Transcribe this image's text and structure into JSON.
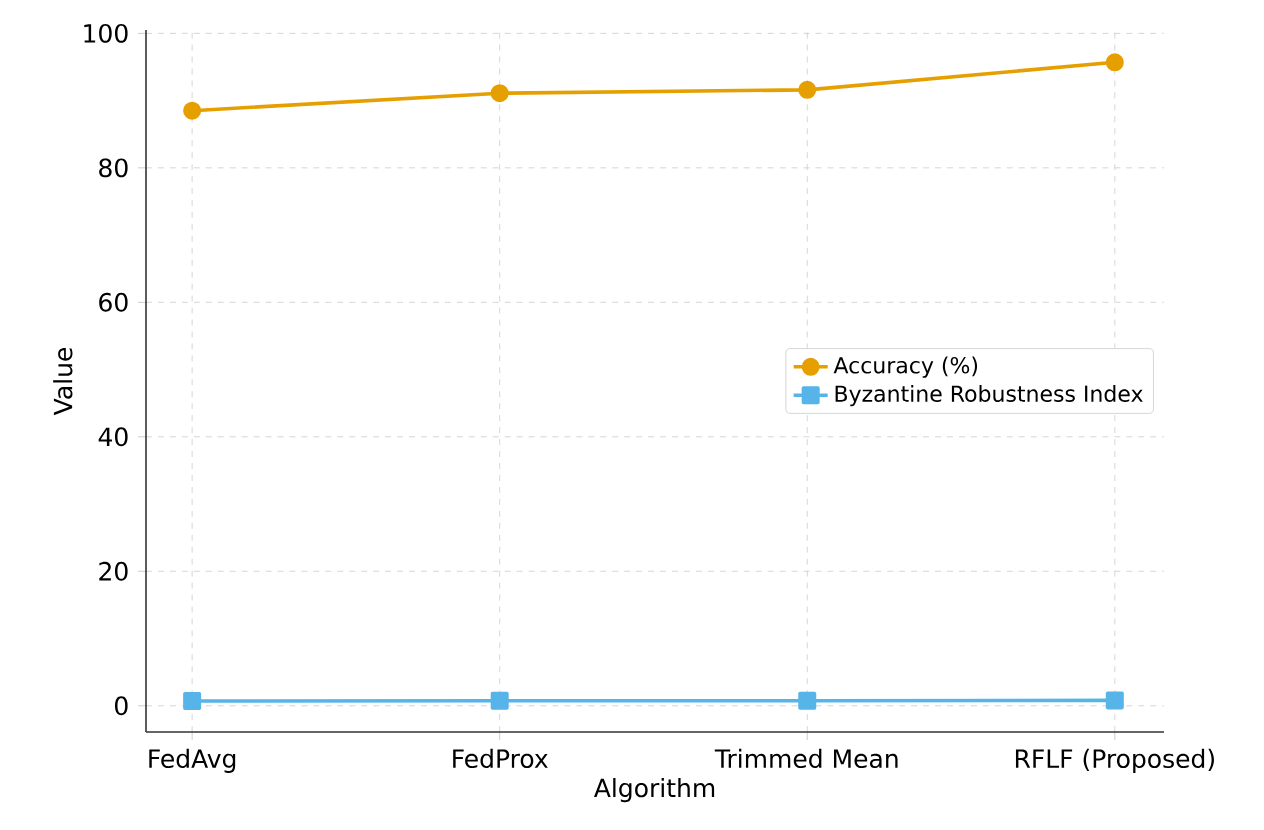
{
  "chart_data": {
    "type": "line",
    "xlabel": "Algorithm",
    "ylabel": "Value",
    "categories": [
      "FedAvg",
      "FedProx",
      "Trimmed Mean",
      "RFLF (Proposed)"
    ],
    "series": [
      {
        "name": "Accuracy (%)",
        "color": "#e69f00",
        "values": [
          88.5,
          91.1,
          91.6,
          95.7
        ],
        "marker": "circle"
      },
      {
        "name": "Byzantine Robustness Index",
        "color": "#56b4e9",
        "values": [
          0.7,
          0.75,
          0.75,
          0.8
        ],
        "marker": "square"
      }
    ],
    "ylim": [
      -3.9,
      100.5
    ],
    "yticks": [
      0,
      20,
      40,
      60,
      80,
      100
    ],
    "grid": true,
    "legend": "right",
    "line_style": "solid"
  }
}
